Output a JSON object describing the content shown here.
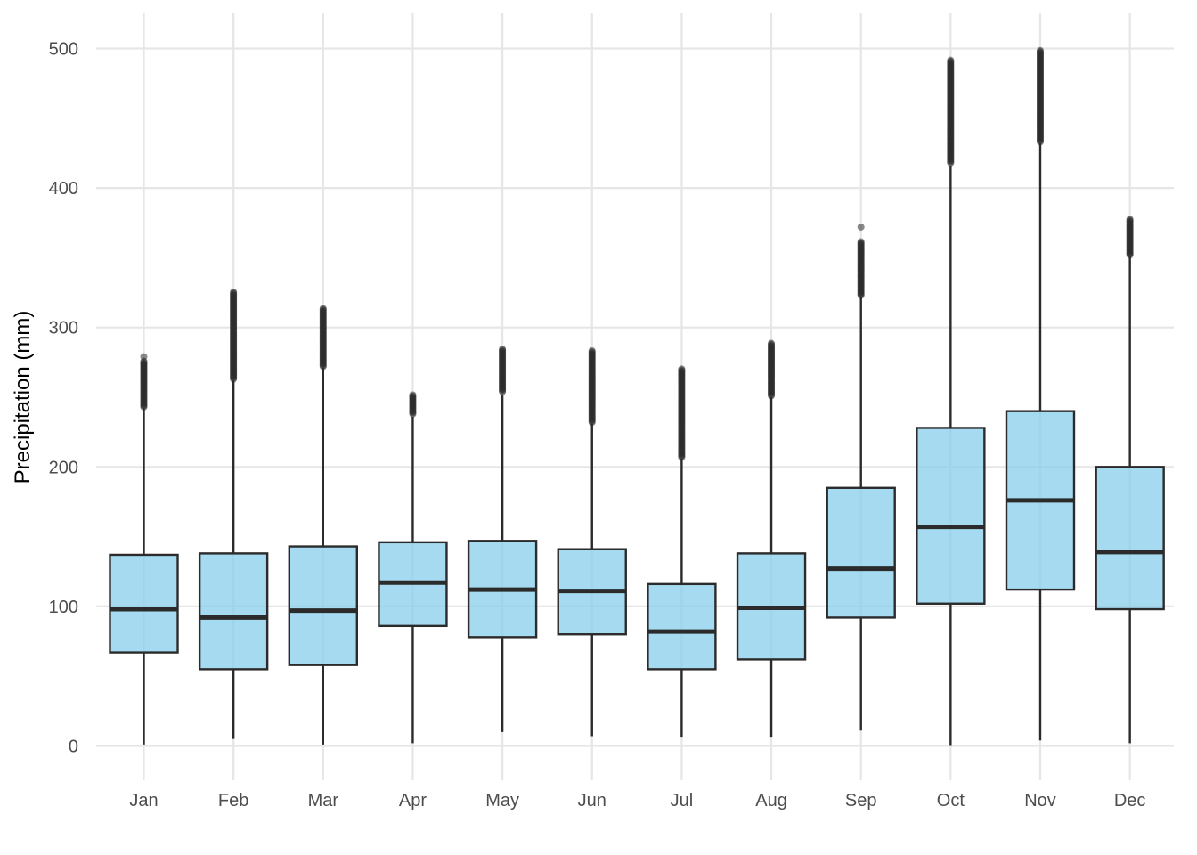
{
  "chart_data": {
    "type": "box",
    "ylabel": "Precipitation (mm)",
    "xlabel": "",
    "ylim": [
      -25,
      525
    ],
    "yticks": [
      0,
      100,
      200,
      300,
      400,
      500
    ],
    "grid": true,
    "colors": {
      "box_fill": "#87ceeb",
      "box_stroke": "#2b2b2b",
      "grid": "#e6e6e6"
    },
    "categories": [
      "Jan",
      "Feb",
      "Mar",
      "Apr",
      "May",
      "Jun",
      "Jul",
      "Aug",
      "Sep",
      "Oct",
      "Nov",
      "Dec"
    ],
    "boxes": [
      {
        "month": "Jan",
        "min": 1,
        "q1": 67,
        "median": 98,
        "q3": 137,
        "max": 242,
        "outliers_from": 243,
        "outliers_to": 276,
        "outlier_extra": [
          279
        ]
      },
      {
        "month": "Feb",
        "min": 5,
        "q1": 55,
        "median": 92,
        "q3": 138,
        "max": 262,
        "outliers_from": 263,
        "outliers_to": 326,
        "outlier_extra": []
      },
      {
        "month": "Mar",
        "min": 1,
        "q1": 58,
        "median": 97,
        "q3": 143,
        "max": 271,
        "outliers_from": 272,
        "outliers_to": 314,
        "outlier_extra": []
      },
      {
        "month": "Apr",
        "min": 2,
        "q1": 86,
        "median": 117,
        "q3": 146,
        "max": 236,
        "outliers_from": 238,
        "outliers_to": 252,
        "outlier_extra": []
      },
      {
        "month": "May",
        "min": 10,
        "q1": 78,
        "median": 112,
        "q3": 147,
        "max": 252,
        "outliers_from": 254,
        "outliers_to": 285,
        "outlier_extra": []
      },
      {
        "month": "Jun",
        "min": 7,
        "q1": 80,
        "median": 111,
        "q3": 141,
        "max": 231,
        "outliers_from": 232,
        "outliers_to": 284,
        "outlier_extra": []
      },
      {
        "month": "Jul",
        "min": 6,
        "q1": 55,
        "median": 82,
        "q3": 116,
        "max": 206,
        "outliers_from": 207,
        "outliers_to": 271,
        "outlier_extra": []
      },
      {
        "month": "Aug",
        "min": 6,
        "q1": 62,
        "median": 99,
        "q3": 138,
        "max": 250,
        "outliers_from": 251,
        "outliers_to": 289,
        "outlier_extra": []
      },
      {
        "month": "Sep",
        "min": 11,
        "q1": 92,
        "median": 127,
        "q3": 185,
        "max": 322,
        "outliers_from": 323,
        "outliers_to": 362,
        "outlier_extra": [
          372
        ]
      },
      {
        "month": "Oct",
        "min": 0,
        "q1": 102,
        "median": 157,
        "q3": 228,
        "max": 416,
        "outliers_from": 418,
        "outliers_to": 492,
        "outlier_extra": []
      },
      {
        "month": "Nov",
        "min": 4,
        "q1": 112,
        "median": 176,
        "q3": 240,
        "max": 432,
        "outliers_from": 433,
        "outliers_to": 499,
        "outlier_extra": []
      },
      {
        "month": "Dec",
        "min": 2,
        "q1": 98,
        "median": 139,
        "q3": 200,
        "max": 351,
        "outliers_from": 352,
        "outliers_to": 378,
        "outlier_extra": []
      }
    ]
  }
}
